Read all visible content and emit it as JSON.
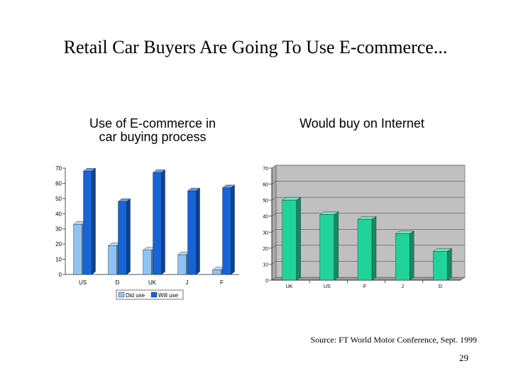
{
  "slide": {
    "title": "Retail Car Buyers Are Going To Use E-commerce...",
    "source": "Source: FT World Motor Conference, Sept. 1999",
    "page_number": "29"
  },
  "chart_data": [
    {
      "type": "bar",
      "title": "Use of E-commerce in car buying process",
      "title_lines": [
        "Use of E-commerce in",
        "car buying process"
      ],
      "categories": [
        "US",
        "D",
        "UK",
        "J",
        "F"
      ],
      "series": [
        {
          "name": "Did use",
          "values": [
            33,
            19,
            16,
            13,
            3
          ],
          "color": "#8fc3f4"
        },
        {
          "name": "Will use",
          "values": [
            68,
            48,
            67,
            55,
            57
          ],
          "color": "#1565d6"
        }
      ],
      "ylim": [
        0,
        70
      ],
      "yticks": [
        "0",
        "10",
        "20",
        "30",
        "40",
        "50",
        "60",
        "70"
      ],
      "grid": false,
      "legend": "bottom"
    },
    {
      "type": "bar",
      "title": "Would buy on Internet",
      "categories": [
        "UK",
        "US",
        "F",
        "J",
        "D"
      ],
      "series": [
        {
          "values": [
            50,
            41,
            38,
            29,
            18
          ],
          "color": "#1fd39a"
        }
      ],
      "ylim": [
        0,
        70
      ],
      "yticks": [
        "0",
        "10",
        "20",
        "30",
        "40",
        "50",
        "60",
        "70"
      ],
      "grid": true,
      "plot_background": "#c0c0c0"
    }
  ]
}
